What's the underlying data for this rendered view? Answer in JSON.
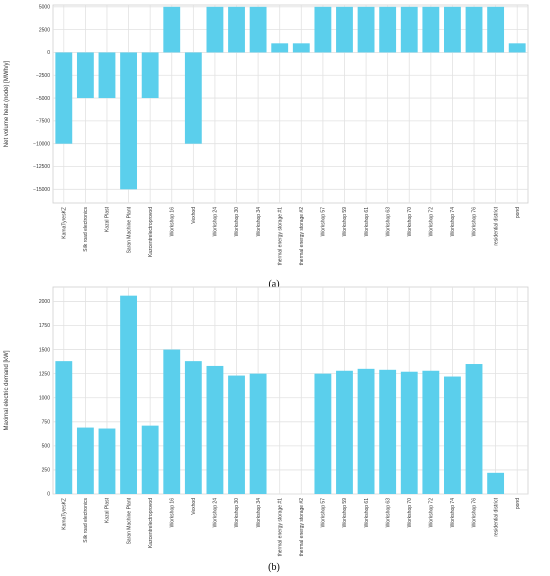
{
  "chart_data": [
    {
      "type": "bar",
      "panel_label": "(a)",
      "xlabel": "",
      "ylabel": "Net volume heat (node) [MWh/y]",
      "ylim": [
        -16500,
        5200
      ],
      "yticks": [
        5000,
        2500,
        0,
        -2500,
        -5000,
        -7500,
        -10000,
        -12500,
        -15000
      ],
      "ytick_labels": [
        "5000",
        "2500",
        "0",
        "−2500",
        "−5000",
        "−7500",
        "−10000",
        "−12500",
        "−15000"
      ],
      "grid": true,
      "bar_color": "#5bcfec",
      "categories": [
        "KamaTyresKZ",
        "Silk road electronics",
        "Kazal Plast",
        "Saran Machine Plant",
        "Kazcentrelectroprovod",
        "Workshop 16",
        "Vexhod",
        "Workshop 24",
        "Workshop 30",
        "Workshop 34",
        "thermal energy storage #1",
        "thermal energy storage #2",
        "Workshop 57",
        "Workshop 59",
        "Workshop 61",
        "Workshop 63",
        "Workshop 70",
        "Workshop 72",
        "Workshop 74",
        "Workshop 76",
        "residential district",
        "pond"
      ],
      "values": [
        -10000,
        -5000,
        -5000,
        -15000,
        -5000,
        5000,
        -10000,
        5000,
        5000,
        5000,
        1000,
        1000,
        5000,
        5000,
        5000,
        5000,
        5000,
        5000,
        5000,
        5000,
        5000,
        1000
      ]
    },
    {
      "type": "bar",
      "panel_label": "(b)",
      "xlabel": "",
      "ylabel": "Maximal electric demand [kW]",
      "ylim": [
        0,
        2150
      ],
      "yticks": [
        0,
        250,
        500,
        750,
        1000,
        1250,
        1500,
        1750,
        2000
      ],
      "ytick_labels": [
        "0",
        "250",
        "500",
        "750",
        "1000",
        "1250",
        "1500",
        "1750",
        "2000"
      ],
      "grid": true,
      "bar_color": "#5bcfec",
      "categories": [
        "KamaTyresKZ",
        "Silk road electronics",
        "Kazal Plast",
        "Saran Machine Plant",
        "Kazcentrelectroprovod",
        "Workshop 16",
        "Vexhod",
        "Workshop 24",
        "Workshop 30",
        "Workshop 34",
        "thermal energy storage #1",
        "thermal energy storage #2",
        "Workshop 57",
        "Workshop 59",
        "Workshop 61",
        "Workshop 63",
        "Workshop 70",
        "Workshop 72",
        "Workshop 74",
        "Workshop 76",
        "residential district",
        "pond"
      ],
      "values": [
        1380,
        690,
        680,
        2060,
        710,
        1500,
        1380,
        1330,
        1230,
        1250,
        0,
        0,
        1250,
        1280,
        1300,
        1290,
        1270,
        1280,
        1220,
        1350,
        220,
        0
      ]
    }
  ]
}
